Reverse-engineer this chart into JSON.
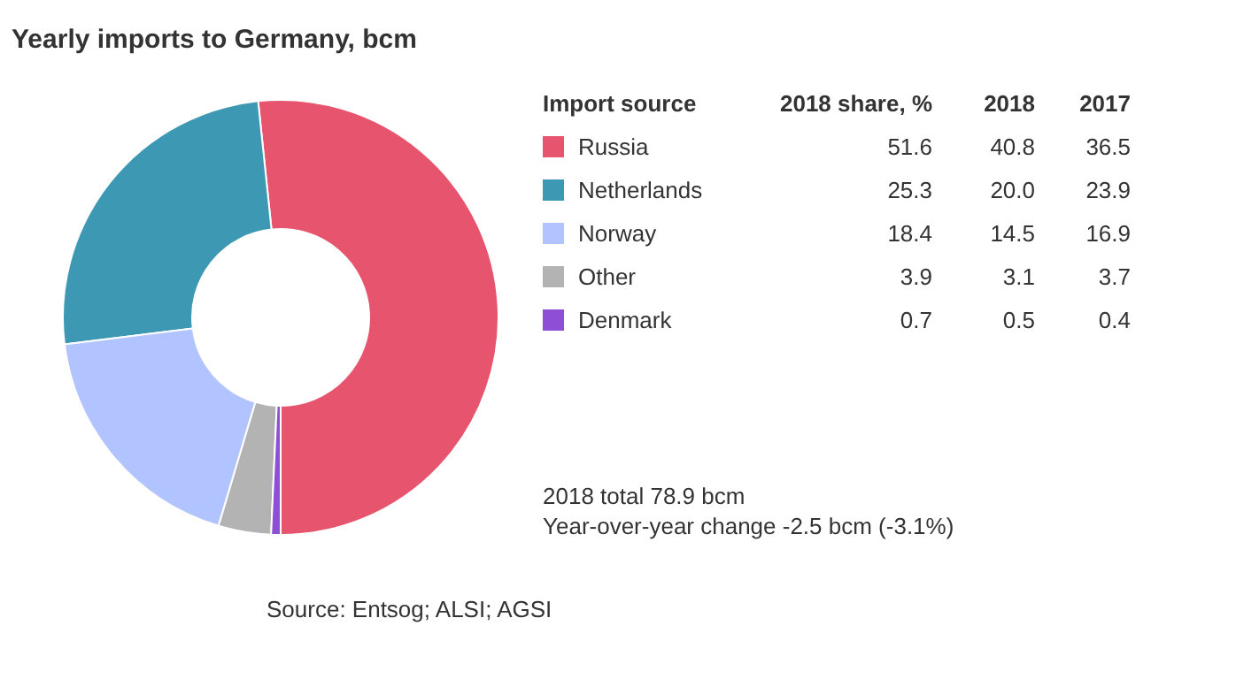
{
  "chart_data": [
    {
      "type": "donut",
      "title": "Yearly imports to Germany, bcm",
      "legend_title": "Import source",
      "legend": "right",
      "categories": [
        "Russia",
        "Netherlands",
        "Norway",
        "Other",
        "Denmark"
      ],
      "values": [
        51.6,
        25.3,
        18.4,
        3.9,
        0.7
      ],
      "colors": [
        "#e6546e",
        "#3d98b4",
        "#b2c4ff",
        "#b3b3b3",
        "#8e4fd6"
      ],
      "annotations": [
        "2018 total 78.9 bcm",
        "Year-over-year change -2.5 bcm (-3.1%)",
        "Source: Entsog; ALSI; AGSI"
      ]
    },
    {
      "type": "other",
      "annotations": [
        "2018 share, %",
        "2018",
        "2017",
        "51.6",
        "40.8",
        "36.5",
        "25.3",
        "20.0",
        "23.9",
        "18.4",
        "14.5",
        "16.9",
        "3.9",
        "3.1",
        "3.7",
        "0.7",
        "0.5",
        "0.4"
      ]
    }
  ]
}
